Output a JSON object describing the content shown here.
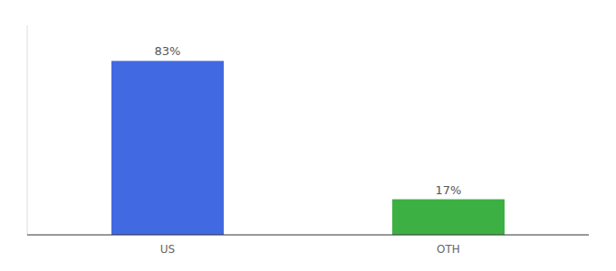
{
  "chart_data": {
    "type": "bar",
    "categories": [
      "US",
      "OTH"
    ],
    "values": [
      83,
      17
    ],
    "value_labels": [
      "83%",
      "17%"
    ],
    "colors": [
      "#4169E1",
      "#3CB043"
    ],
    "ylim": [
      0,
      100
    ],
    "data_labels": true,
    "tick_labels": "x"
  }
}
